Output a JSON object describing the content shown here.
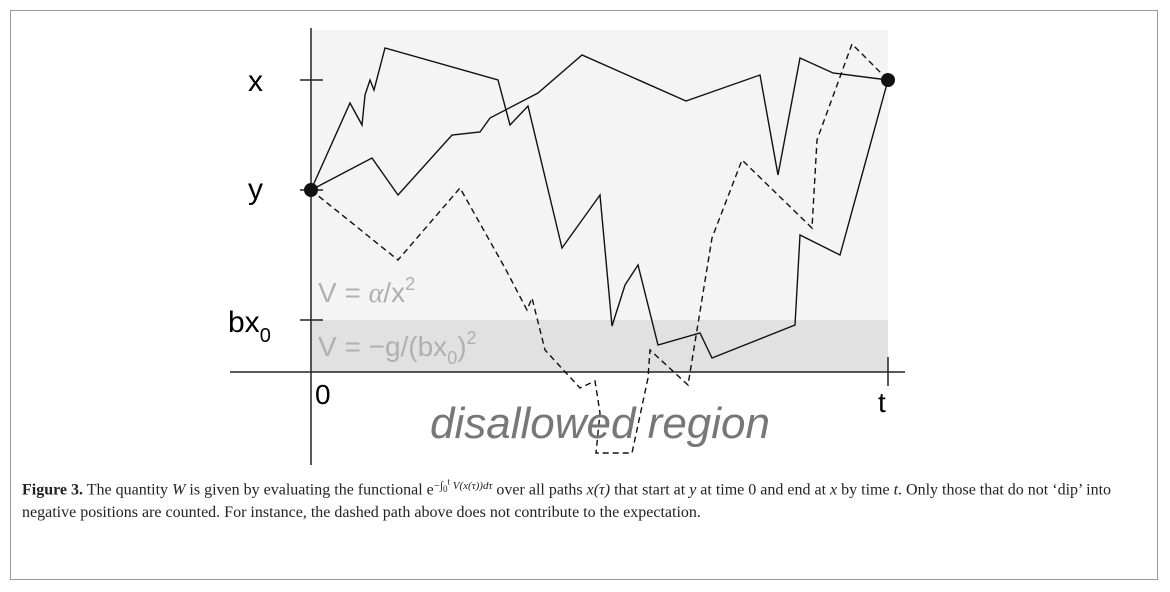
{
  "figure": {
    "axis_labels": {
      "x": "x",
      "y": "y",
      "bx": "bx",
      "bx_sub": "0",
      "origin": "0",
      "t": "t"
    },
    "region_upper": [
      "V = ",
      "α",
      "/x",
      "2"
    ],
    "region_lower": [
      "V = −g/(bx",
      "0",
      ")",
      "2"
    ],
    "disallowed": "disallowed region",
    "caption": [
      "Figure 3.",
      " The quantity ",
      "W",
      " is given by evaluating the functional ",
      "e",
      "−∫",
      "0",
      "t",
      " V(x(τ))dτ",
      " over all paths ",
      "x(τ)",
      " that start at ",
      "y",
      " at time 0 and end at ",
      "x",
      " by time ",
      "t",
      ". Only those that do not ‘dip’ into negative positions are counted. For instance, the dashed path above does not contribute to the expectation."
    ]
  }
}
